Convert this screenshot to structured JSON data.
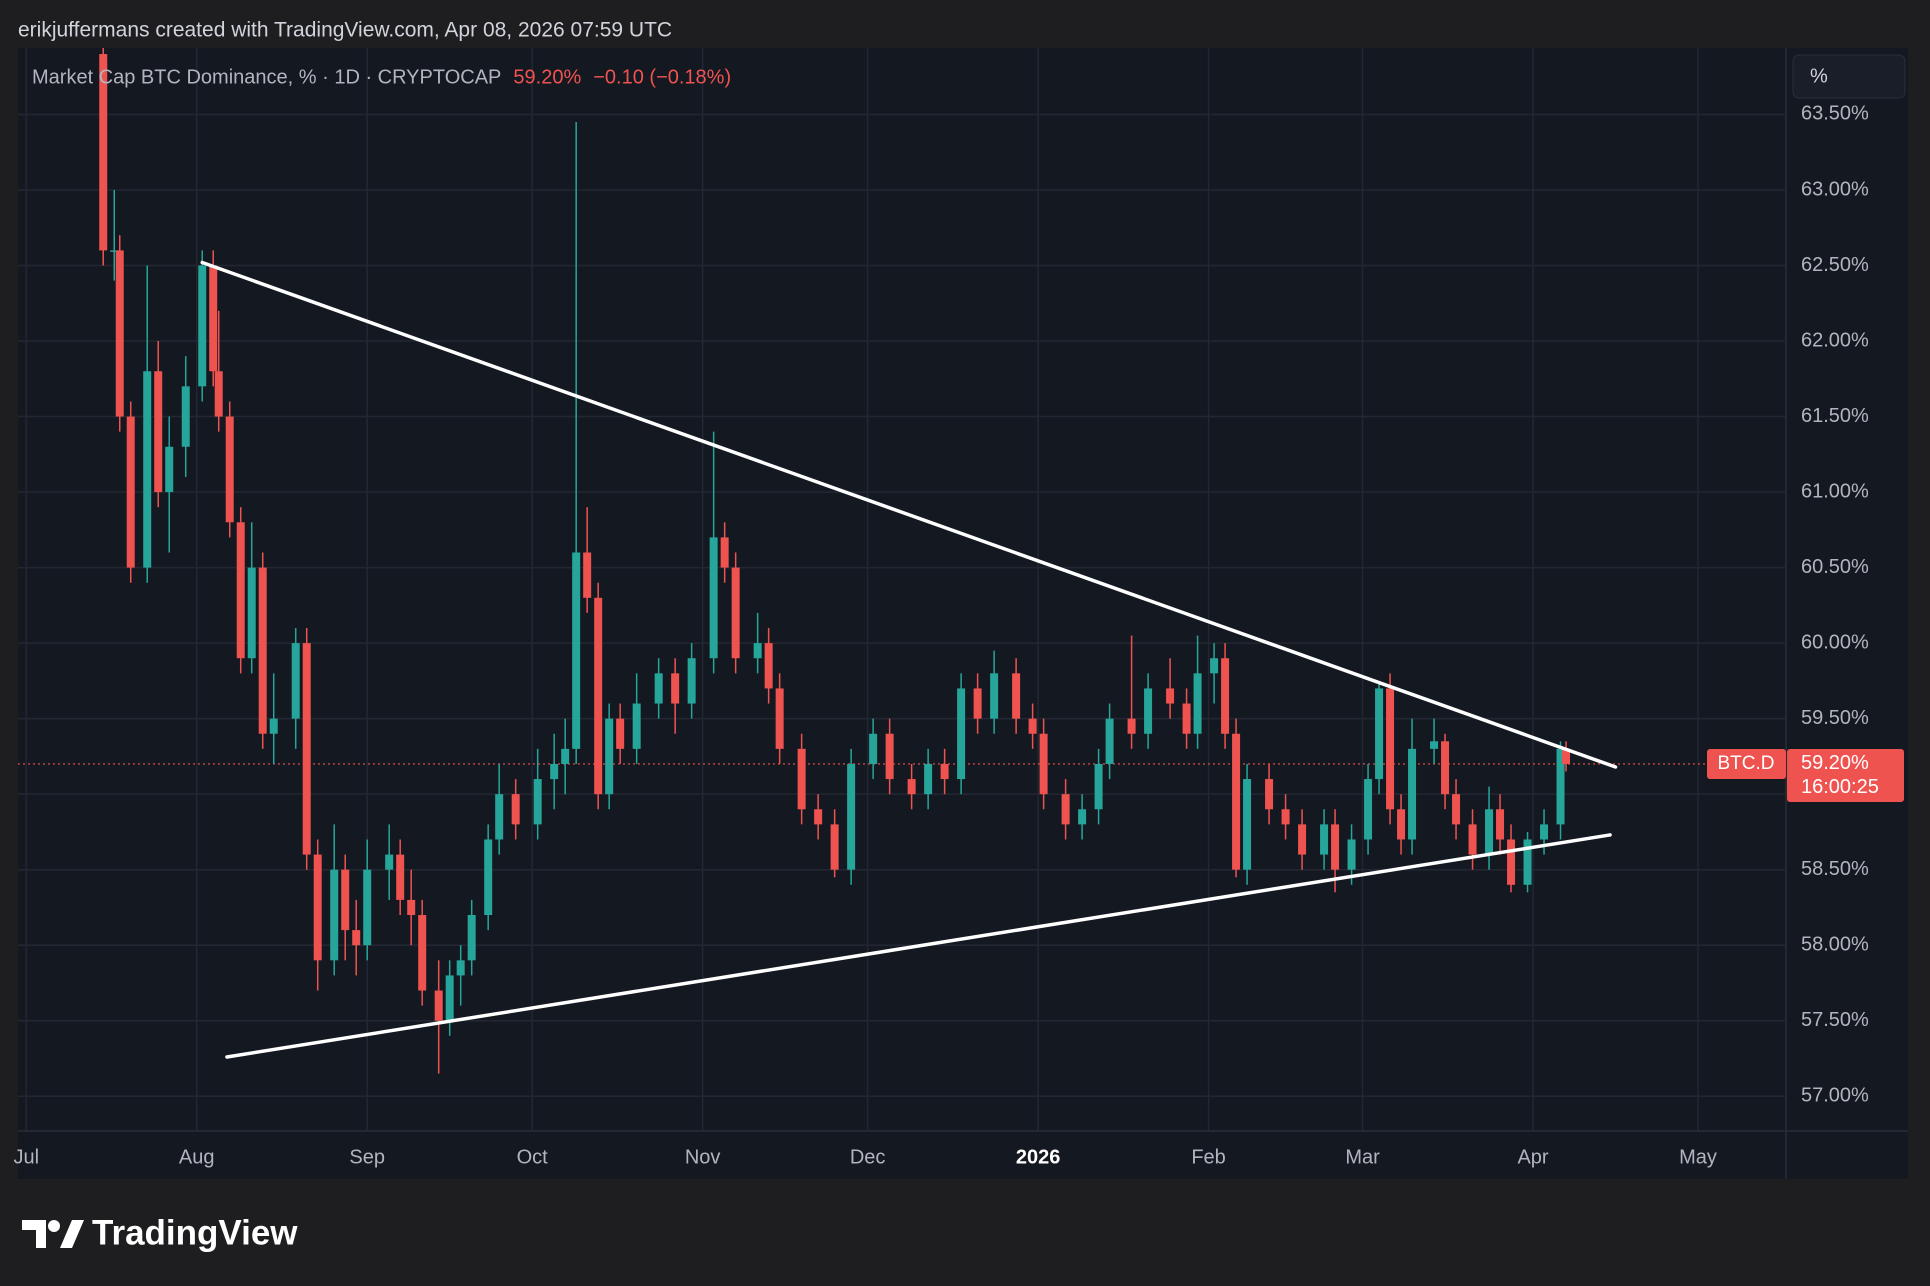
{
  "chart_data": {
    "type": "candlestick",
    "attribution": "erikjuffermans created with TradingView.com, Apr 08, 2026 07:59 UTC",
    "title": "Market Cap BTC Dominance, % · 1D · CRYPTOCAP",
    "last_value_label": "59.20%",
    "change_label": "−0.10 (−0.18%)",
    "scale_mode": "%",
    "symbol": "BTC.D",
    "last_price": {
      "value": 59.2,
      "label": "59.20%"
    },
    "countdown": "16:00:25",
    "brand": "TradingView",
    "up_color": "#26a69a",
    "down_color": "#ef5350",
    "grid": true,
    "xlim": [
      -1.5,
      320
    ],
    "ylim": [
      56.77,
      63.94
    ],
    "xticks": [
      {
        "value": 0,
        "label": "Jul"
      },
      {
        "value": 31,
        "label": "Aug"
      },
      {
        "value": 62,
        "label": "Sep"
      },
      {
        "value": 92,
        "label": "Oct"
      },
      {
        "value": 123,
        "label": "Nov"
      },
      {
        "value": 153,
        "label": "Dec"
      },
      {
        "value": 184,
        "label": "2026"
      },
      {
        "value": 215,
        "label": "Feb"
      },
      {
        "value": 243,
        "label": "Mar"
      },
      {
        "value": 274,
        "label": "Apr"
      },
      {
        "value": 304,
        "label": "May"
      }
    ],
    "yticks": [
      {
        "value": 57,
        "label": "57.00%"
      },
      {
        "value": 57.5,
        "label": "57.50%"
      },
      {
        "value": 58,
        "label": "58.00%"
      },
      {
        "value": 58.5,
        "label": "58.50%"
      },
      {
        "value": 59,
        "label": "59.00%"
      },
      {
        "value": 59.5,
        "label": "59.50%"
      },
      {
        "value": 60,
        "label": "60.00%"
      },
      {
        "value": 60.5,
        "label": "60.50%"
      },
      {
        "value": 61,
        "label": "61.00%"
      },
      {
        "value": 61.5,
        "label": "61.50%"
      },
      {
        "value": 62,
        "label": "62.00%"
      },
      {
        "value": 62.5,
        "label": "62.50%"
      },
      {
        "value": 63,
        "label": "63.00%"
      },
      {
        "value": 63.5,
        "label": "63.50%"
      }
    ],
    "candles": [
      [
        14,
        63.9,
        64.0,
        62.5,
        62.6
      ],
      [
        16,
        62.6,
        63.0,
        62.4,
        62.6
      ],
      [
        17,
        62.6,
        62.7,
        61.4,
        61.5
      ],
      [
        19,
        61.5,
        61.6,
        60.4,
        60.5
      ],
      [
        22,
        60.5,
        62.5,
        60.4,
        61.8
      ],
      [
        24,
        61.8,
        62.0,
        60.9,
        61.0
      ],
      [
        26,
        61.0,
        61.5,
        60.6,
        61.3
      ],
      [
        29,
        61.3,
        61.9,
        61.1,
        61.7
      ],
      [
        32,
        61.7,
        62.6,
        61.6,
        62.5
      ],
      [
        34,
        62.5,
        62.6,
        61.7,
        61.8
      ],
      [
        35,
        61.8,
        62.2,
        61.4,
        61.5
      ],
      [
        37,
        61.5,
        61.6,
        60.7,
        60.8
      ],
      [
        39,
        60.8,
        60.9,
        59.8,
        59.9
      ],
      [
        41,
        59.9,
        60.8,
        59.8,
        60.5
      ],
      [
        43,
        60.5,
        60.6,
        59.3,
        59.4
      ],
      [
        45,
        59.4,
        59.8,
        59.2,
        59.5
      ],
      [
        49,
        59.5,
        60.1,
        59.3,
        60.0
      ],
      [
        51,
        60.0,
        60.1,
        58.5,
        58.6
      ],
      [
        53,
        58.6,
        58.7,
        57.7,
        57.9
      ],
      [
        56,
        57.9,
        58.8,
        57.8,
        58.5
      ],
      [
        58,
        58.5,
        58.6,
        57.9,
        58.1
      ],
      [
        60,
        58.1,
        58.3,
        57.8,
        58.0
      ],
      [
        62,
        58.0,
        58.7,
        57.9,
        58.5
      ],
      [
        66,
        58.5,
        58.8,
        58.3,
        58.6
      ],
      [
        68,
        58.6,
        58.7,
        58.2,
        58.3
      ],
      [
        70,
        58.3,
        58.5,
        58.0,
        58.2
      ],
      [
        72,
        58.2,
        58.3,
        57.6,
        57.7
      ],
      [
        75,
        57.7,
        57.9,
        57.15,
        57.5
      ],
      [
        77,
        57.5,
        57.9,
        57.4,
        57.8
      ],
      [
        79,
        57.8,
        58.0,
        57.6,
        57.9
      ],
      [
        81,
        57.9,
        58.3,
        57.8,
        58.2
      ],
      [
        84,
        58.2,
        58.8,
        58.1,
        58.7
      ],
      [
        86,
        58.7,
        59.2,
        58.6,
        59.0
      ],
      [
        89,
        59.0,
        59.1,
        58.7,
        58.8
      ],
      [
        93,
        58.8,
        59.3,
        58.7,
        59.1
      ],
      [
        96,
        59.1,
        59.4,
        58.9,
        59.2
      ],
      [
        98,
        59.2,
        59.5,
        59.0,
        59.3
      ],
      [
        100,
        59.3,
        63.45,
        59.2,
        60.6
      ],
      [
        102,
        60.6,
        60.9,
        60.2,
        60.3
      ],
      [
        104,
        60.3,
        60.4,
        58.9,
        59.0
      ],
      [
        106,
        59.0,
        59.6,
        58.9,
        59.5
      ],
      [
        108,
        59.5,
        59.6,
        59.2,
        59.3
      ],
      [
        111,
        59.3,
        59.8,
        59.2,
        59.6
      ],
      [
        115,
        59.6,
        59.9,
        59.5,
        59.8
      ],
      [
        118,
        59.8,
        59.9,
        59.4,
        59.6
      ],
      [
        121,
        59.6,
        60.0,
        59.5,
        59.9
      ],
      [
        125,
        59.9,
        61.4,
        59.8,
        60.7
      ],
      [
        127,
        60.7,
        60.8,
        60.4,
        60.5
      ],
      [
        129,
        60.5,
        60.6,
        59.8,
        59.9
      ],
      [
        133,
        59.9,
        60.2,
        59.8,
        60.0
      ],
      [
        135,
        60.0,
        60.1,
        59.6,
        59.7
      ],
      [
        137,
        59.7,
        59.8,
        59.2,
        59.3
      ],
      [
        141,
        59.3,
        59.4,
        58.8,
        58.9
      ],
      [
        144,
        58.9,
        59.0,
        58.7,
        58.8
      ],
      [
        147,
        58.8,
        58.9,
        58.45,
        58.5
      ],
      [
        150,
        58.5,
        59.3,
        58.4,
        59.2
      ],
      [
        154,
        59.2,
        59.5,
        59.1,
        59.4
      ],
      [
        157,
        59.4,
        59.5,
        59.0,
        59.1
      ],
      [
        161,
        59.1,
        59.2,
        58.9,
        59.0
      ],
      [
        164,
        59.0,
        59.3,
        58.9,
        59.2
      ],
      [
        167,
        59.2,
        59.3,
        59.0,
        59.1
      ],
      [
        170,
        59.1,
        59.8,
        59.0,
        59.7
      ],
      [
        173,
        59.7,
        59.8,
        59.4,
        59.5
      ],
      [
        176,
        59.5,
        59.95,
        59.4,
        59.8
      ],
      [
        180,
        59.8,
        59.9,
        59.4,
        59.5
      ],
      [
        183,
        59.5,
        59.6,
        59.3,
        59.4
      ],
      [
        185,
        59.4,
        59.5,
        58.9,
        59.0
      ],
      [
        189,
        59.0,
        59.1,
        58.7,
        58.8
      ],
      [
        192,
        58.8,
        59.0,
        58.7,
        58.9
      ],
      [
        195,
        58.9,
        59.3,
        58.8,
        59.2
      ],
      [
        197,
        59.2,
        59.6,
        59.1,
        59.5
      ],
      [
        201,
        59.5,
        60.05,
        59.3,
        59.4
      ],
      [
        204,
        59.4,
        59.8,
        59.3,
        59.7
      ],
      [
        208,
        59.7,
        59.9,
        59.5,
        59.6
      ],
      [
        211,
        59.6,
        59.7,
        59.3,
        59.4
      ],
      [
        213,
        59.4,
        60.05,
        59.3,
        59.8
      ],
      [
        216,
        59.8,
        60.0,
        59.6,
        59.9
      ],
      [
        218,
        59.9,
        60.0,
        59.3,
        59.4
      ],
      [
        220,
        59.4,
        59.5,
        58.45,
        58.5
      ],
      [
        222,
        58.5,
        59.2,
        58.4,
        59.1
      ],
      [
        226,
        59.1,
        59.2,
        58.8,
        58.9
      ],
      [
        229,
        58.9,
        59.0,
        58.7,
        58.8
      ],
      [
        232,
        58.8,
        58.9,
        58.5,
        58.6
      ],
      [
        236,
        58.6,
        58.9,
        58.5,
        58.8
      ],
      [
        238,
        58.8,
        58.9,
        58.35,
        58.5
      ],
      [
        241,
        58.5,
        58.8,
        58.4,
        58.7
      ],
      [
        244,
        58.7,
        59.2,
        58.6,
        59.1
      ],
      [
        246,
        59.1,
        59.75,
        59.0,
        59.7
      ],
      [
        248,
        59.7,
        59.8,
        58.8,
        58.9
      ],
      [
        250,
        58.9,
        59.0,
        58.6,
        58.7
      ],
      [
        252,
        58.7,
        59.5,
        58.6,
        59.3
      ],
      [
        256,
        59.3,
        59.5,
        59.2,
        59.35
      ],
      [
        258,
        59.35,
        59.4,
        58.9,
        59.0
      ],
      [
        260,
        59.0,
        59.1,
        58.7,
        58.8
      ],
      [
        263,
        58.8,
        58.9,
        58.5,
        58.6
      ],
      [
        266,
        58.6,
        59.05,
        58.5,
        58.9
      ],
      [
        268,
        58.9,
        59.0,
        58.6,
        58.7
      ],
      [
        270,
        58.7,
        58.8,
        58.35,
        58.4
      ],
      [
        273,
        58.4,
        58.75,
        58.35,
        58.7
      ],
      [
        276,
        58.7,
        58.9,
        58.6,
        58.8
      ],
      [
        279,
        58.8,
        59.35,
        58.7,
        59.3
      ],
      [
        280,
        59.3,
        59.35,
        59.15,
        59.2
      ]
    ],
    "trendlines": [
      {
        "x": [
          32,
          289
        ],
        "y": [
          62.52,
          59.18
        ]
      },
      {
        "x": [
          36.5,
          288
        ],
        "y": [
          57.26,
          58.73
        ]
      }
    ]
  }
}
